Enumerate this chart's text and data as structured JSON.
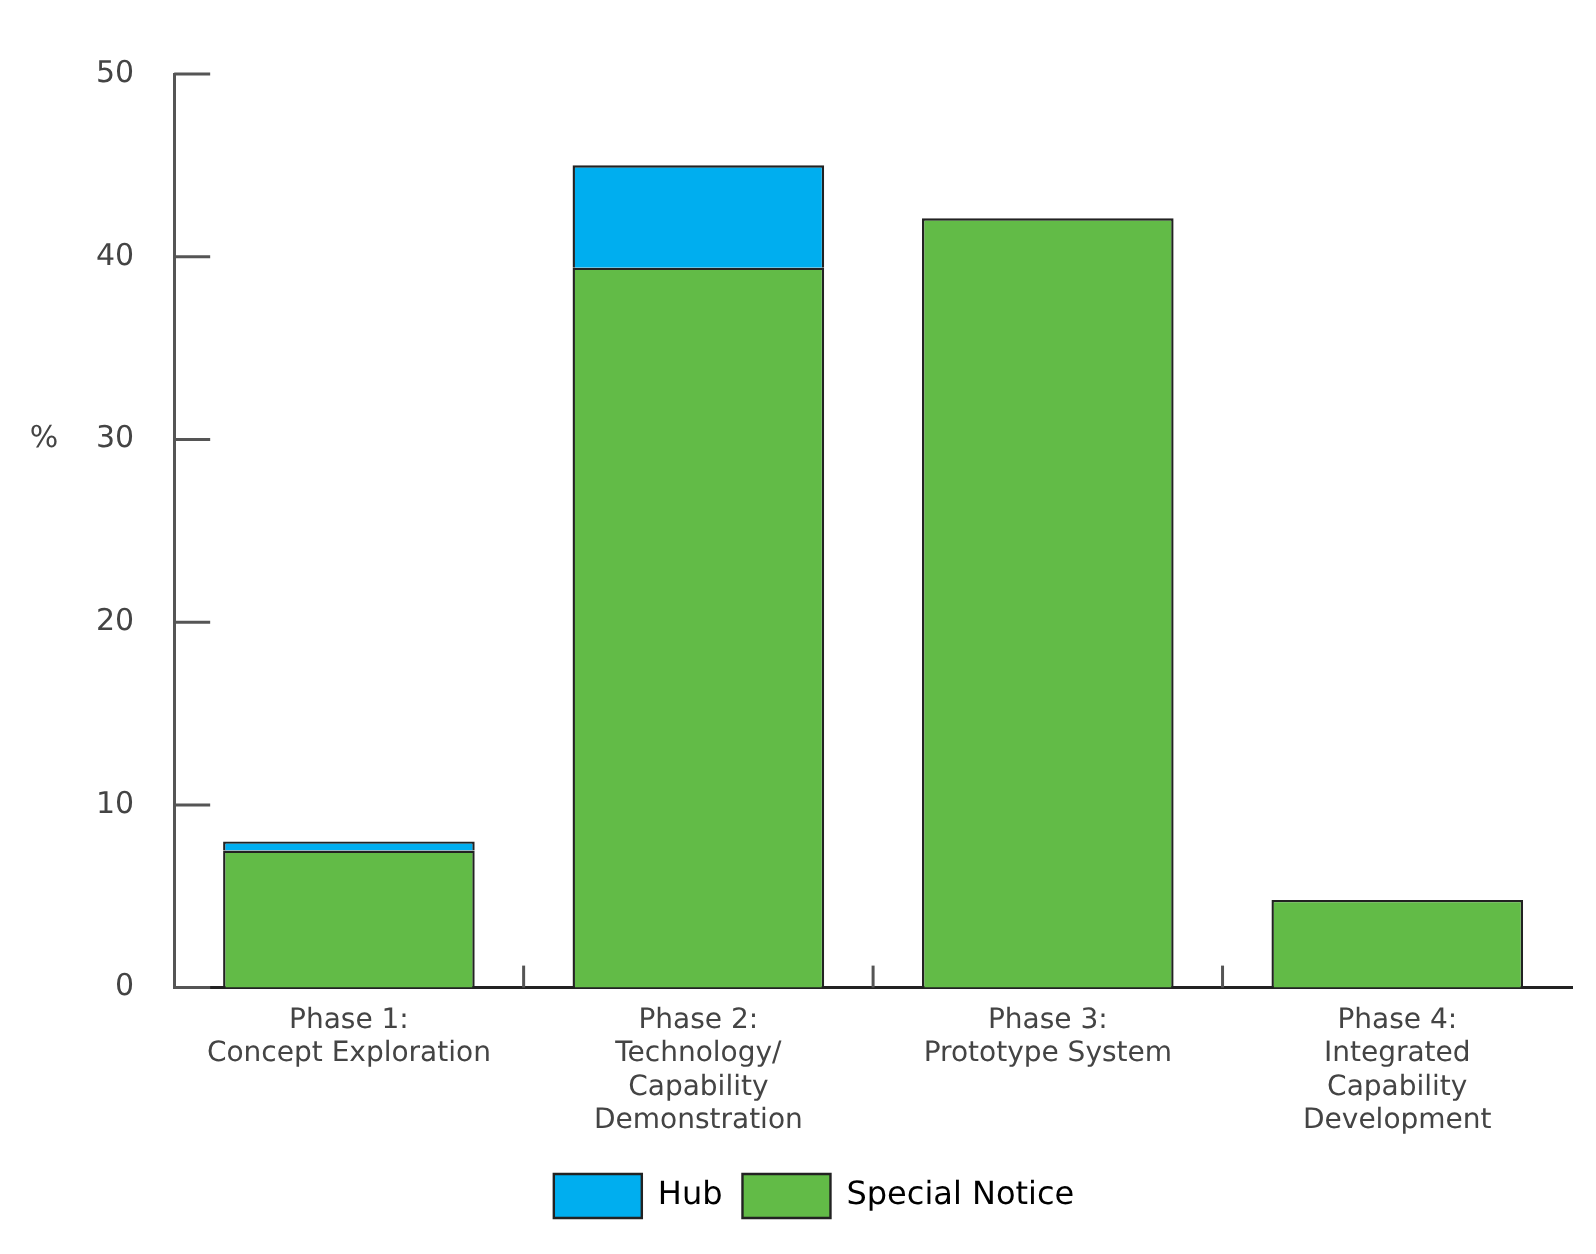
{
  "chart_data": {
    "type": "bar",
    "stacked": true,
    "ylabel": "%",
    "categories": [
      "Phase 1:\nConcept Exploration",
      "Phase 2:\nTechnology/\nCapability\nDemonstration",
      "Phase 3:\nPrototype System",
      "Phase 4:\nIntegrated\nCapability\nDevelopment"
    ],
    "series": [
      {
        "name": "Special Notice",
        "color": "#62bb47",
        "values": [
          7.5,
          39.4,
          42.1,
          4.8
        ]
      },
      {
        "name": "Hub",
        "color": "#00aeef",
        "values": [
          0.5,
          5.6,
          0,
          0
        ]
      }
    ],
    "ylim": [
      0,
      50
    ],
    "yticks": [
      0,
      10,
      20,
      30,
      40,
      50
    ],
    "grid": false,
    "legend": "bottom"
  }
}
